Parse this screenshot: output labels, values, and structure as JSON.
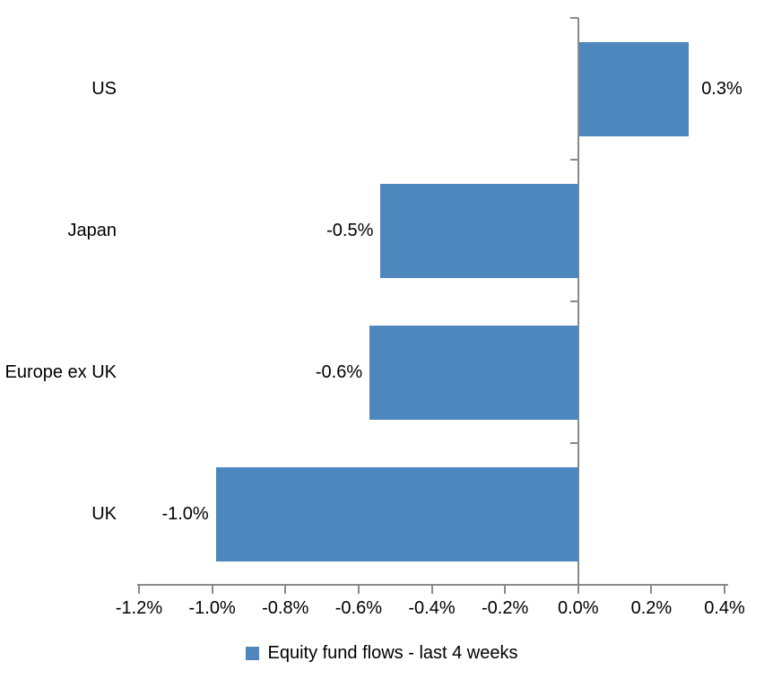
{
  "chart_data": {
    "type": "bar",
    "orientation": "horizontal",
    "title": "",
    "categories": [
      "US",
      "Japan",
      "Europe ex UK",
      "UK"
    ],
    "values": [
      0.3,
      -0.5,
      -0.6,
      -1.0
    ],
    "value_labels": [
      "0.3%",
      "-0.5%",
      "-0.6%",
      "-1.0%"
    ],
    "bar_render_values": [
      0.3,
      -0.54,
      -0.57,
      -0.99
    ],
    "xlim": [
      -1.2,
      0.4
    ],
    "x_ticks": [
      -1.2,
      -1.0,
      -0.8,
      -0.6,
      -0.4,
      -0.2,
      0.0,
      0.2,
      0.4
    ],
    "x_tick_labels": [
      "-1.2%",
      "-1.0%",
      "-0.8%",
      "-0.6%",
      "-0.4%",
      "-0.2%",
      "0.0%",
      "0.2%",
      "0.4%"
    ],
    "grid": false,
    "legend_position": "bottom-center",
    "legend": [
      {
        "label": "Equity fund flows - last 4 weeks",
        "color": "#4e86be"
      }
    ],
    "bar_color": "#4e86be",
    "axis_color": "#8a8a8a",
    "text_color": "#000000"
  }
}
